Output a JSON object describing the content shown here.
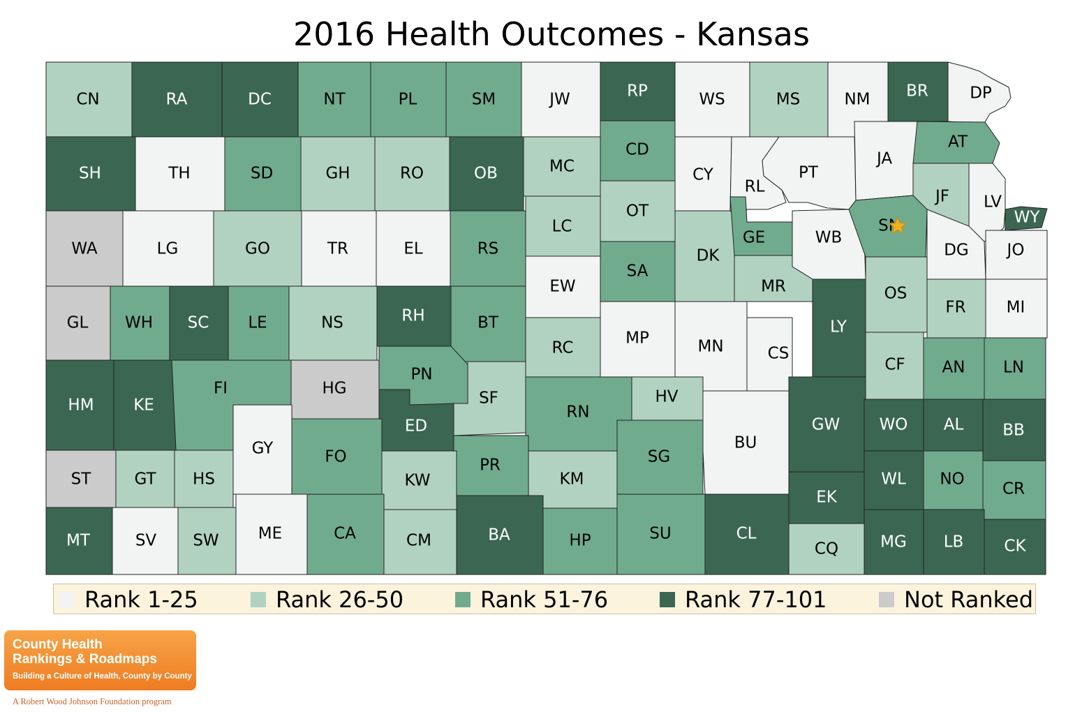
{
  "title": "2016 Health Outcomes - Kansas",
  "colors": {
    "rank_1_25": "#f1f4f2",
    "rank_26_50": "#b1d2c0",
    "rank_51_76": "#71ab8d",
    "rank_77_101": "#3b6752",
    "not_ranked": "#cbcbcb",
    "star": "#f2b01e"
  },
  "legend": [
    {
      "label": "Rank 1-25",
      "group": "rank_1_25"
    },
    {
      "label": "Rank 26-50",
      "group": "rank_26_50"
    },
    {
      "label": "Rank 51-76",
      "group": "rank_51_76"
    },
    {
      "label": "Rank 77-101",
      "group": "rank_77_101"
    },
    {
      "label": "Not Ranked",
      "group": "not_ranked"
    }
  ],
  "counties": [
    {
      "abbr": "CN",
      "group": "rank_26_50"
    },
    {
      "abbr": "RA",
      "group": "rank_77_101"
    },
    {
      "abbr": "DC",
      "group": "rank_77_101"
    },
    {
      "abbr": "NT",
      "group": "rank_51_76"
    },
    {
      "abbr": "PL",
      "group": "rank_51_76"
    },
    {
      "abbr": "SM",
      "group": "rank_51_76"
    },
    {
      "abbr": "JW",
      "group": "rank_1_25"
    },
    {
      "abbr": "RP",
      "group": "rank_77_101"
    },
    {
      "abbr": "WS",
      "group": "rank_1_25"
    },
    {
      "abbr": "MS",
      "group": "rank_26_50"
    },
    {
      "abbr": "NM",
      "group": "rank_1_25"
    },
    {
      "abbr": "BR",
      "group": "rank_77_101"
    },
    {
      "abbr": "DP",
      "group": "rank_1_25"
    },
    {
      "abbr": "SH",
      "group": "rank_77_101"
    },
    {
      "abbr": "TH",
      "group": "rank_1_25"
    },
    {
      "abbr": "SD",
      "group": "rank_51_76"
    },
    {
      "abbr": "GH",
      "group": "rank_26_50"
    },
    {
      "abbr": "RO",
      "group": "rank_26_50"
    },
    {
      "abbr": "OB",
      "group": "rank_77_101"
    },
    {
      "abbr": "MC",
      "group": "rank_26_50"
    },
    {
      "abbr": "CD",
      "group": "rank_51_76"
    },
    {
      "abbr": "CY",
      "group": "rank_1_25"
    },
    {
      "abbr": "RL",
      "group": "rank_1_25"
    },
    {
      "abbr": "PT",
      "group": "rank_1_25"
    },
    {
      "abbr": "JA",
      "group": "rank_1_25"
    },
    {
      "abbr": "AT",
      "group": "rank_51_76"
    },
    {
      "abbr": "JF",
      "group": "rank_26_50"
    },
    {
      "abbr": "LV",
      "group": "rank_1_25"
    },
    {
      "abbr": "WY",
      "group": "rank_77_101"
    },
    {
      "abbr": "WA",
      "group": "not_ranked"
    },
    {
      "abbr": "LG",
      "group": "rank_1_25"
    },
    {
      "abbr": "GO",
      "group": "rank_26_50"
    },
    {
      "abbr": "TR",
      "group": "rank_1_25"
    },
    {
      "abbr": "EL",
      "group": "rank_1_25"
    },
    {
      "abbr": "RS",
      "group": "rank_51_76"
    },
    {
      "abbr": "LC",
      "group": "rank_26_50"
    },
    {
      "abbr": "OT",
      "group": "rank_26_50"
    },
    {
      "abbr": "DK",
      "group": "rank_26_50"
    },
    {
      "abbr": "GE",
      "group": "rank_51_76"
    },
    {
      "abbr": "WB",
      "group": "rank_1_25"
    },
    {
      "abbr": "SN",
      "group": "rank_51_76"
    },
    {
      "abbr": "DG",
      "group": "rank_1_25"
    },
    {
      "abbr": "JO",
      "group": "rank_1_25"
    },
    {
      "abbr": "SA",
      "group": "rank_51_76"
    },
    {
      "abbr": "EW",
      "group": "rank_1_25"
    },
    {
      "abbr": "MR",
      "group": "rank_26_50"
    },
    {
      "abbr": "GL",
      "group": "not_ranked"
    },
    {
      "abbr": "WH",
      "group": "rank_51_76"
    },
    {
      "abbr": "SC",
      "group": "rank_77_101"
    },
    {
      "abbr": "LE",
      "group": "rank_51_76"
    },
    {
      "abbr": "NS",
      "group": "rank_26_50"
    },
    {
      "abbr": "RH",
      "group": "rank_77_101"
    },
    {
      "abbr": "BT",
      "group": "rank_51_76"
    },
    {
      "abbr": "RC",
      "group": "rank_26_50"
    },
    {
      "abbr": "MP",
      "group": "rank_1_25"
    },
    {
      "abbr": "MN",
      "group": "rank_1_25"
    },
    {
      "abbr": "CS",
      "group": "rank_1_25"
    },
    {
      "abbr": "LY",
      "group": "rank_77_101"
    },
    {
      "abbr": "OS",
      "group": "rank_26_50"
    },
    {
      "abbr": "FR",
      "group": "rank_26_50"
    },
    {
      "abbr": "MI",
      "group": "rank_1_25"
    },
    {
      "abbr": "HM",
      "group": "rank_77_101"
    },
    {
      "abbr": "KE",
      "group": "rank_77_101"
    },
    {
      "abbr": "FI",
      "group": "rank_51_76"
    },
    {
      "abbr": "HG",
      "group": "not_ranked"
    },
    {
      "abbr": "PN",
      "group": "rank_51_76"
    },
    {
      "abbr": "SF",
      "group": "rank_26_50"
    },
    {
      "abbr": "RN",
      "group": "rank_51_76"
    },
    {
      "abbr": "HV",
      "group": "rank_26_50"
    },
    {
      "abbr": "CF",
      "group": "rank_26_50"
    },
    {
      "abbr": "AN",
      "group": "rank_51_76"
    },
    {
      "abbr": "LN",
      "group": "rank_51_76"
    },
    {
      "abbr": "GY",
      "group": "rank_1_25"
    },
    {
      "abbr": "ED",
      "group": "rank_77_101"
    },
    {
      "abbr": "BU",
      "group": "rank_1_25"
    },
    {
      "abbr": "GW",
      "group": "rank_77_101"
    },
    {
      "abbr": "WO",
      "group": "rank_77_101"
    },
    {
      "abbr": "AL",
      "group": "rank_77_101"
    },
    {
      "abbr": "BB",
      "group": "rank_77_101"
    },
    {
      "abbr": "FO",
      "group": "rank_51_76"
    },
    {
      "abbr": "PR",
      "group": "rank_51_76"
    },
    {
      "abbr": "SG",
      "group": "rank_51_76"
    },
    {
      "abbr": "ST",
      "group": "not_ranked"
    },
    {
      "abbr": "GT",
      "group": "rank_26_50"
    },
    {
      "abbr": "HS",
      "group": "rank_26_50"
    },
    {
      "abbr": "KW",
      "group": "rank_26_50"
    },
    {
      "abbr": "KM",
      "group": "rank_26_50"
    },
    {
      "abbr": "WL",
      "group": "rank_77_101"
    },
    {
      "abbr": "NO",
      "group": "rank_51_76"
    },
    {
      "abbr": "CR",
      "group": "rank_51_76"
    },
    {
      "abbr": "EK",
      "group": "rank_77_101"
    },
    {
      "abbr": "MT",
      "group": "rank_77_101"
    },
    {
      "abbr": "SV",
      "group": "rank_1_25"
    },
    {
      "abbr": "SW",
      "group": "rank_26_50"
    },
    {
      "abbr": "ME",
      "group": "rank_1_25"
    },
    {
      "abbr": "CA",
      "group": "rank_51_76"
    },
    {
      "abbr": "CM",
      "group": "rank_26_50"
    },
    {
      "abbr": "BA",
      "group": "rank_77_101"
    },
    {
      "abbr": "HP",
      "group": "rank_51_76"
    },
    {
      "abbr": "SU",
      "group": "rank_51_76"
    },
    {
      "abbr": "CL",
      "group": "rank_77_101"
    },
    {
      "abbr": "CQ",
      "group": "rank_26_50"
    },
    {
      "abbr": "MG",
      "group": "rank_77_101"
    },
    {
      "abbr": "LB",
      "group": "rank_77_101"
    },
    {
      "abbr": "CK",
      "group": "rank_77_101"
    }
  ],
  "marker": {
    "county": "SN",
    "icon": "star-icon"
  },
  "logo": {
    "line1": "County Health",
    "line2": "Rankings & Roadmaps",
    "tagline": "Building a Culture of Health, County by County"
  },
  "footer": "A Robert Wood Johnson Foundation program"
}
